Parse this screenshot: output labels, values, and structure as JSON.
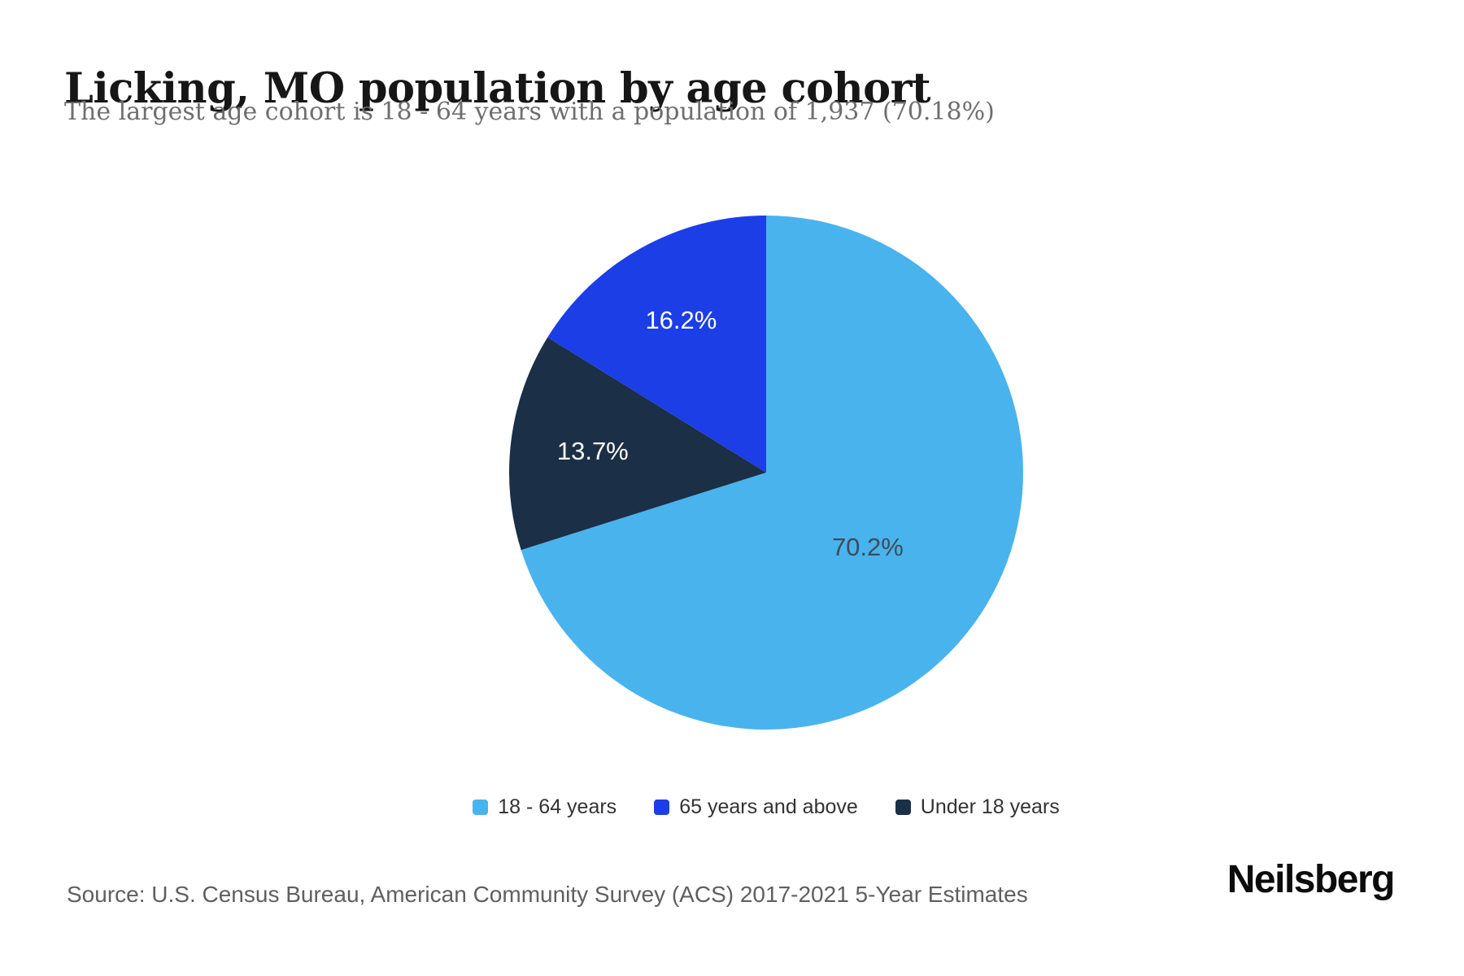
{
  "header": {
    "title": "Licking, MO population by age cohort",
    "subtitle": "The largest age cohort is 18 - 64 years with a population of 1,937 (70.18%)"
  },
  "chart_data": {
    "type": "pie",
    "title": "Licking, MO population by age cohort",
    "start_angle_deg": 0,
    "direction": "clockwise",
    "slices": [
      {
        "label": "18 - 64 years",
        "percent": 70.2,
        "display": "70.2%",
        "color": "#49B3EE",
        "label_color": "#3E4C59"
      },
      {
        "label": "Under 18 years",
        "percent": 13.7,
        "display": "13.7%",
        "color": "#1B2F46",
        "label_color": "#FFFFFF"
      },
      {
        "label": "65 years and above",
        "percent": 16.2,
        "display": "16.2%",
        "color": "#1C3EE6",
        "label_color": "#FFFFFF"
      }
    ],
    "legend_position": "bottom",
    "legend": [
      {
        "label": "18 - 64 years",
        "color": "#49B3EE"
      },
      {
        "label": "65 years and above",
        "color": "#1C3EE6"
      },
      {
        "label": "Under 18 years",
        "color": "#1B2F46"
      }
    ]
  },
  "footer": {
    "source": "Source: U.S. Census Bureau, American Community Survey (ACS) 2017-2021 5-Year Estimates",
    "brand": "Neilsberg"
  }
}
